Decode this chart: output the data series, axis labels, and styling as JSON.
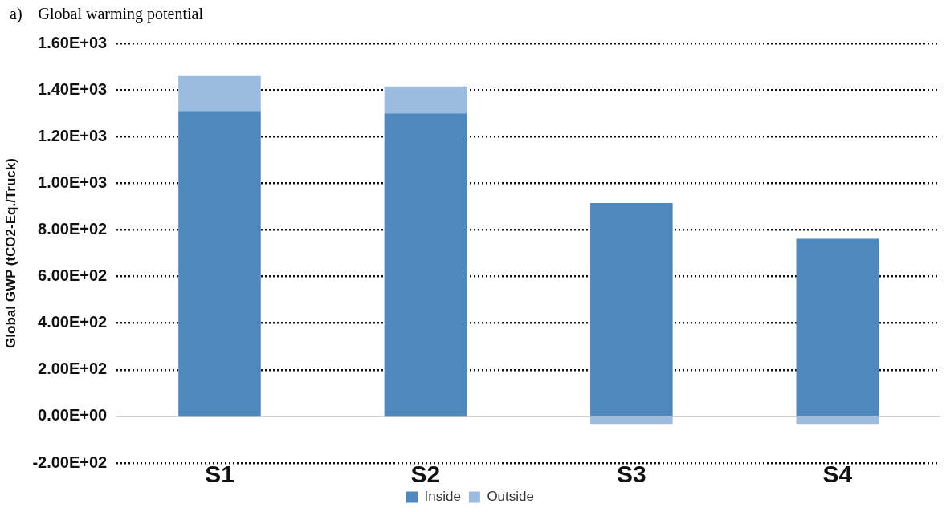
{
  "chart_data": {
    "type": "bar",
    "title": "a)    Global warming potential",
    "ylabel": "Global GWP (tCO2-Eq./Truck)",
    "categories": [
      "S1",
      "S2",
      "S3",
      "S4"
    ],
    "stacked": true,
    "series": [
      {
        "name": "Inside",
        "color": "#4f88bd",
        "values": [
          1310,
          1300,
          915,
          762
        ]
      },
      {
        "name": "Outside",
        "color": "#9bbbe0",
        "values": [
          150,
          115,
          -32,
          -32
        ]
      }
    ],
    "ylim": [
      -200,
      1600
    ],
    "yticks": [
      {
        "value": -200,
        "label": "-2.00E+02"
      },
      {
        "value": 0,
        "label": "0.00E+00"
      },
      {
        "value": 200,
        "label": "2.00E+02"
      },
      {
        "value": 400,
        "label": "4.00E+02"
      },
      {
        "value": 600,
        "label": "6.00E+02"
      },
      {
        "value": 800,
        "label": "8.00E+02"
      },
      {
        "value": 1000,
        "label": "1.00E+03"
      },
      {
        "value": 1200,
        "label": "1.20E+03"
      },
      {
        "value": 1400,
        "label": "1.40E+03"
      },
      {
        "value": 1600,
        "label": "1.60E+03"
      }
    ],
    "grid": "y",
    "legend": "bottom"
  }
}
